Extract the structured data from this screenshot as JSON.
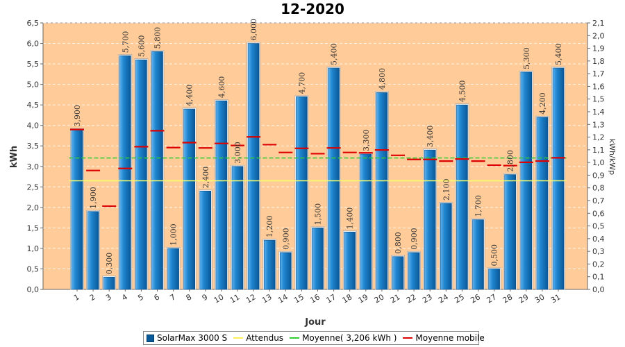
{
  "chart_data": {
    "type": "bar",
    "title": "12-2020",
    "xlabel": "Jour",
    "ylabel": "kWh",
    "y2label": "kWh/kWp",
    "ylim": [
      0,
      6.5
    ],
    "y2lim": [
      0,
      2.1
    ],
    "categories": [
      "1",
      "2",
      "3",
      "4",
      "5",
      "6",
      "7",
      "8",
      "9",
      "10",
      "11",
      "12",
      "13",
      "14",
      "15",
      "16",
      "17",
      "18",
      "19",
      "20",
      "21",
      "22",
      "23",
      "24",
      "25",
      "26",
      "27",
      "28",
      "29",
      "30",
      "31"
    ],
    "series": [
      {
        "name": "SolarMax 3000 S",
        "type": "bar",
        "color": "#0a6fb8",
        "values": [
          3.9,
          1.9,
          0.3,
          5.7,
          5.6,
          5.8,
          1.0,
          4.4,
          2.4,
          4.6,
          3.0,
          6.0,
          1.2,
          0.9,
          4.7,
          1.5,
          5.4,
          1.4,
          3.3,
          4.8,
          0.8,
          0.9,
          3.4,
          2.1,
          4.5,
          1.7,
          0.5,
          2.8,
          5.3,
          4.2,
          5.4
        ],
        "labels": [
          "3,900",
          "1,900",
          "0,300",
          "5,700",
          "5,600",
          "5,800",
          "1,000",
          "4,400",
          "2,400",
          "4,600",
          "3,000",
          "6,000",
          "1,200",
          "0,900",
          "4,700",
          "1,500",
          "5,400",
          "1,400",
          "3,300",
          "4,800",
          "0,800",
          "0,900",
          "3,400",
          "2,100",
          "4,500",
          "1,700",
          "0,500",
          "2,800",
          "5,300",
          "4,200",
          "5,400"
        ]
      },
      {
        "name": "Attendus",
        "type": "line",
        "color": "#ffff66",
        "value": 2.65
      },
      {
        "name": "Moyenne( 3,206 kWh )",
        "type": "line",
        "color": "#33cc33",
        "value": 3.206
      },
      {
        "name": "Moyenne mobile",
        "type": "marker",
        "color": "#dd0000",
        "values": [
          3.9,
          2.9,
          2.03,
          2.95,
          3.48,
          3.87,
          3.46,
          3.58,
          3.45,
          3.56,
          3.51,
          3.72,
          3.53,
          3.34,
          3.44,
          3.31,
          3.45,
          3.34,
          3.33,
          3.4,
          3.27,
          3.17,
          3.17,
          3.13,
          3.18,
          3.13,
          3.03,
          3.02,
          3.1,
          3.13,
          3.21
        ]
      }
    ],
    "yticks": [
      "0,0",
      "0,5",
      "1,0",
      "1,5",
      "2,0",
      "2,5",
      "3,0",
      "3,5",
      "4,0",
      "4,5",
      "5,0",
      "5,5",
      "6,0",
      "6,5"
    ],
    "y2ticks": [
      "0,0",
      "0,1",
      "0,2",
      "0,3",
      "0,4",
      "0,5",
      "0,6",
      "0,7",
      "0,8",
      "0,9",
      "1,0",
      "1,1",
      "1,2",
      "1,3",
      "1,4",
      "1,5",
      "1,6",
      "1,7",
      "1,8",
      "1,9",
      "2,0",
      "2,1"
    ],
    "plot_background": "#ffcc99",
    "grid": true,
    "legend_position": "bottom"
  }
}
